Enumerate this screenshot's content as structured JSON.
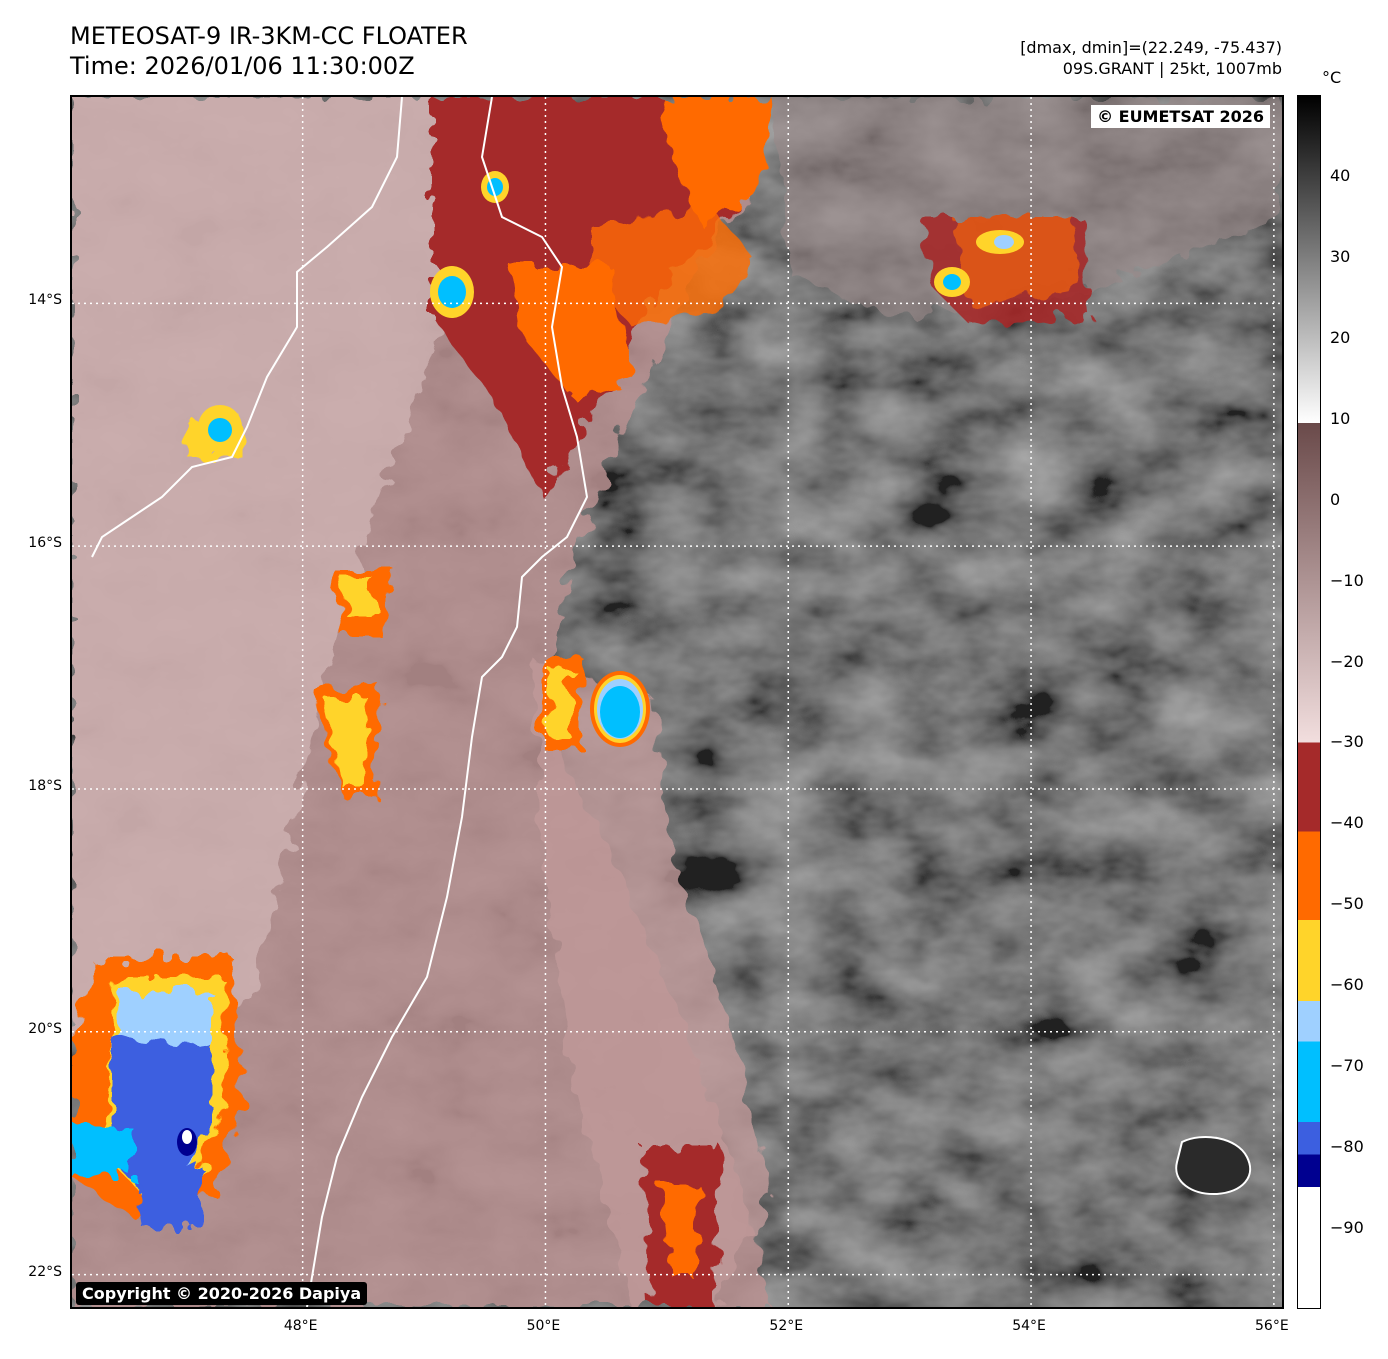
{
  "header": {
    "title": "METEOSAT-9 IR-3KM-CC FLOATER",
    "time": "Time: 2026/01/06 11:30:00Z",
    "range": "[dmax, dmin]=(22.249, -75.437)",
    "storm": "09S.GRANT | 25kt, 1007mb"
  },
  "map": {
    "copyright_top": "© EUMETSAT 2026",
    "copyright_bottom": "Copyright © 2020-2026 Dapiya",
    "lat_labels": [
      "14°S",
      "16°S",
      "18°S",
      "20°S",
      "22°S"
    ],
    "lon_labels": [
      "48°E",
      "50°E",
      "52°E",
      "54°E",
      "56°E"
    ],
    "lat_values": [
      -14,
      -16,
      -18,
      -20,
      -22
    ],
    "lon_values": [
      48,
      50,
      52,
      54,
      56
    ],
    "extent": {
      "lon_min": 46.1,
      "lon_max": 56.1,
      "lat_min": -22.3,
      "lat_max": -12.3
    }
  },
  "colorbar": {
    "unit": "°C",
    "range": [
      -100,
      50
    ],
    "ticks": [
      {
        "value": 40,
        "label": "40"
      },
      {
        "value": 30,
        "label": "30"
      },
      {
        "value": 20,
        "label": "20"
      },
      {
        "value": 10,
        "label": "10"
      },
      {
        "value": 0,
        "label": "0"
      },
      {
        "value": -10,
        "label": "−10"
      },
      {
        "value": -20,
        "label": "−20"
      },
      {
        "value": -30,
        "label": "−30"
      },
      {
        "value": -40,
        "label": "−40"
      },
      {
        "value": -50,
        "label": "−50"
      },
      {
        "value": -60,
        "label": "−60"
      },
      {
        "value": -70,
        "label": "−70"
      },
      {
        "value": -80,
        "label": "−80"
      },
      {
        "value": -90,
        "label": "−90"
      }
    ],
    "colors": {
      "black_top": "#000000",
      "white_mid": "#ffffff",
      "brown_start": "#6a4a4a",
      "pink_end": "#f2dede",
      "dark_red": "#a52a2a",
      "orange": "#ff6a00",
      "yellow": "#ffd42a",
      "light_blue": "#9fd0ff",
      "cyan": "#00bfff",
      "royal_blue": "#3c5fe0",
      "navy": "#000090",
      "white_bottom": "#ffffff"
    }
  }
}
